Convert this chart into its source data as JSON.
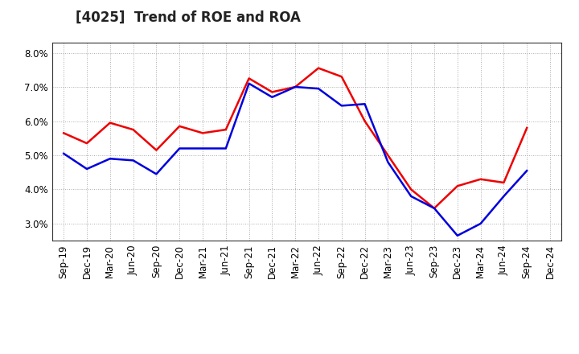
{
  "title": "[4025]  Trend of ROE and ROA",
  "labels": [
    "Sep-19",
    "Dec-19",
    "Mar-20",
    "Jun-20",
    "Sep-20",
    "Dec-20",
    "Mar-21",
    "Jun-21",
    "Sep-21",
    "Dec-21",
    "Mar-22",
    "Jun-22",
    "Sep-22",
    "Dec-22",
    "Mar-23",
    "Jun-23",
    "Sep-23",
    "Dec-23",
    "Mar-24",
    "Jun-24",
    "Sep-24",
    "Dec-24"
  ],
  "ROE": [
    5.65,
    5.35,
    5.95,
    5.75,
    5.15,
    5.85,
    5.65,
    5.75,
    7.25,
    6.85,
    7.0,
    7.55,
    7.3,
    6.0,
    5.0,
    4.0,
    3.45,
    4.1,
    4.3,
    4.2,
    5.8,
    null
  ],
  "ROA": [
    5.05,
    4.6,
    4.9,
    4.85,
    4.45,
    5.2,
    5.2,
    5.2,
    7.1,
    6.7,
    7.0,
    6.95,
    6.45,
    6.5,
    4.8,
    3.8,
    3.45,
    2.65,
    3.0,
    3.8,
    4.55,
    null
  ],
  "ylim": [
    2.5,
    8.3
  ],
  "yticks": [
    3.0,
    4.0,
    5.0,
    6.0,
    7.0,
    8.0
  ],
  "roe_color": "#ee0000",
  "roa_color": "#0000dd",
  "bg_color": "#ffffff",
  "plot_bg_color": "#ffffff",
  "grid_color": "#aaaaaa",
  "line_width": 1.8,
  "title_fontsize": 12,
  "legend_fontsize": 10,
  "tick_fontsize": 8.5
}
